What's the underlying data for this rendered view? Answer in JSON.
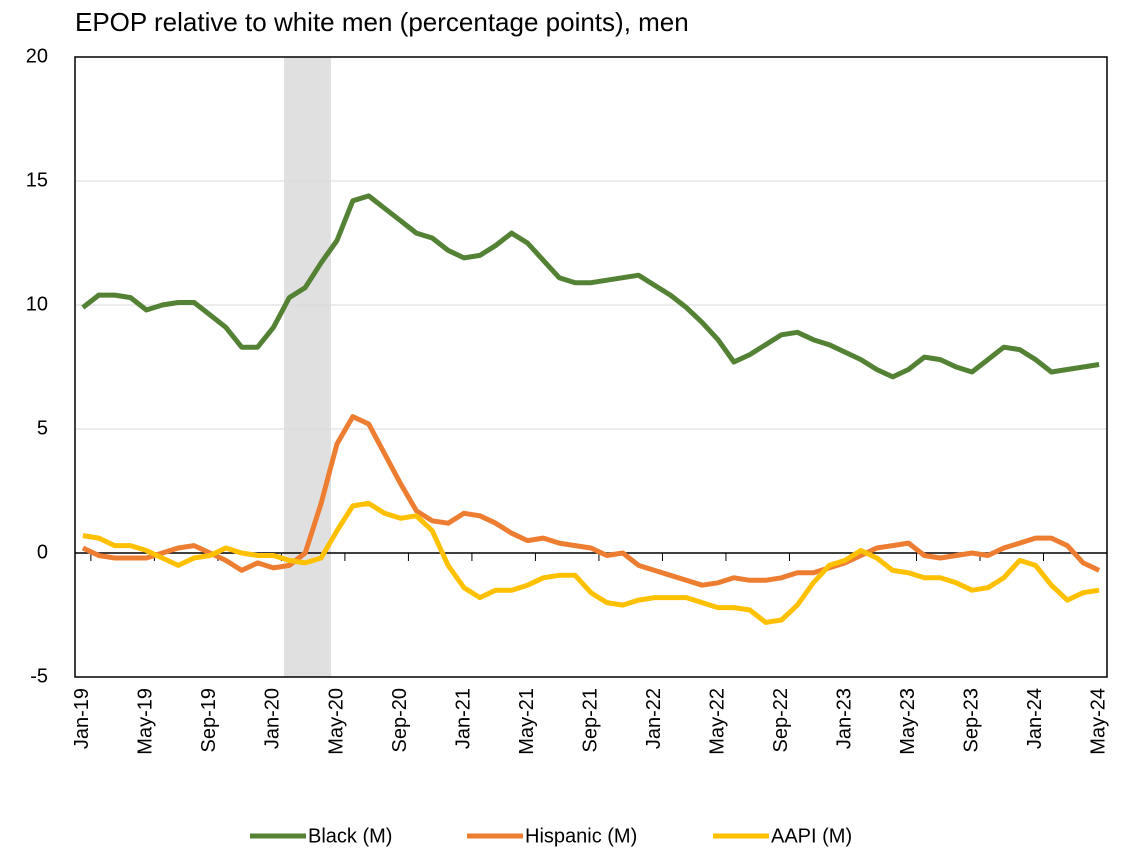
{
  "chart_data": {
    "type": "line",
    "title": "EPOP relative to white men (percentage points), men",
    "categories": [
      "Jan-19",
      null,
      null,
      null,
      "May-19",
      null,
      null,
      null,
      "Sep-19",
      null,
      null,
      null,
      "Jan-20",
      null,
      null,
      null,
      "May-20",
      null,
      null,
      null,
      "Sep-20",
      null,
      null,
      null,
      "Jan-21",
      null,
      null,
      null,
      "May-21",
      null,
      null,
      null,
      "Sep-21",
      null,
      null,
      null,
      "Jan-22",
      null,
      null,
      null,
      "May-22",
      null,
      null,
      null,
      "Sep-22",
      null,
      null,
      null,
      "Jan-23",
      null,
      null,
      null,
      "May-23",
      null,
      null,
      null,
      "Sep-23",
      null,
      null,
      null,
      "Jan-24",
      null,
      null,
      null,
      "May-24"
    ],
    "series": [
      {
        "name": "Black (M)",
        "color": "#548235",
        "values": [
          9.9,
          10.4,
          10.4,
          10.3,
          9.8,
          10.0,
          10.1,
          10.1,
          9.6,
          9.1,
          8.3,
          8.3,
          9.1,
          10.3,
          10.7,
          11.7,
          12.6,
          14.2,
          14.4,
          13.9,
          13.4,
          12.9,
          12.7,
          12.2,
          11.9,
          12.0,
          12.4,
          12.9,
          12.5,
          11.8,
          11.1,
          10.9,
          10.9,
          11.0,
          11.1,
          11.2,
          10.8,
          10.4,
          9.9,
          9.3,
          8.6,
          7.7,
          8.0,
          8.4,
          8.8,
          8.9,
          8.6,
          8.4,
          8.1,
          7.8,
          7.4,
          7.1,
          7.4,
          7.9,
          7.8,
          7.5,
          7.3,
          7.8,
          8.3,
          8.2,
          7.8,
          7.3,
          7.4,
          7.5,
          7.6
        ]
      },
      {
        "name": "Hispanic (M)",
        "color": "#ed7d31",
        "values": [
          0.2,
          -0.1,
          -0.2,
          -0.2,
          -0.2,
          0.0,
          0.2,
          0.3,
          0.0,
          -0.3,
          -0.7,
          -0.4,
          -0.6,
          -0.5,
          0.0,
          2.0,
          4.4,
          5.5,
          5.2,
          4.0,
          2.8,
          1.7,
          1.3,
          1.2,
          1.6,
          1.5,
          1.2,
          0.8,
          0.5,
          0.6,
          0.4,
          0.3,
          0.2,
          -0.1,
          0.0,
          -0.5,
          -0.7,
          -0.9,
          -1.1,
          -1.3,
          -1.2,
          -1.0,
          -1.1,
          -1.1,
          -1.0,
          -0.8,
          -0.8,
          -0.6,
          -0.4,
          -0.1,
          0.2,
          0.3,
          0.4,
          -0.1,
          -0.2,
          -0.1,
          0.0,
          -0.1,
          0.2,
          0.4,
          0.6,
          0.6,
          0.3,
          -0.4,
          -0.7
        ]
      },
      {
        "name": "AAPI (M)",
        "color": "#ffc000",
        "values": [
          0.7,
          0.6,
          0.3,
          0.3,
          0.1,
          -0.2,
          -0.5,
          -0.2,
          -0.1,
          0.2,
          0.0,
          -0.1,
          -0.1,
          -0.3,
          -0.4,
          -0.2,
          0.9,
          1.9,
          2.0,
          1.6,
          1.4,
          1.5,
          0.9,
          -0.5,
          -1.4,
          -1.8,
          -1.5,
          -1.5,
          -1.3,
          -1.0,
          -0.9,
          -0.9,
          -1.6,
          -2.0,
          -2.1,
          -1.9,
          -1.8,
          -1.8,
          -1.8,
          -2.0,
          -2.2,
          -2.2,
          -2.3,
          -2.8,
          -2.7,
          -2.1,
          -1.2,
          -0.5,
          -0.3,
          0.1,
          -0.2,
          -0.7,
          -0.8,
          -1.0,
          -1.0,
          -1.2,
          -1.5,
          -1.4,
          -1.0,
          -0.3,
          -0.5,
          -1.3,
          -1.9,
          -1.6,
          -1.5
        ]
      }
    ],
    "ylim": [
      -5,
      20
    ],
    "yticks": [
      -5,
      0,
      5,
      10,
      15,
      20
    ],
    "grid": true
  }
}
